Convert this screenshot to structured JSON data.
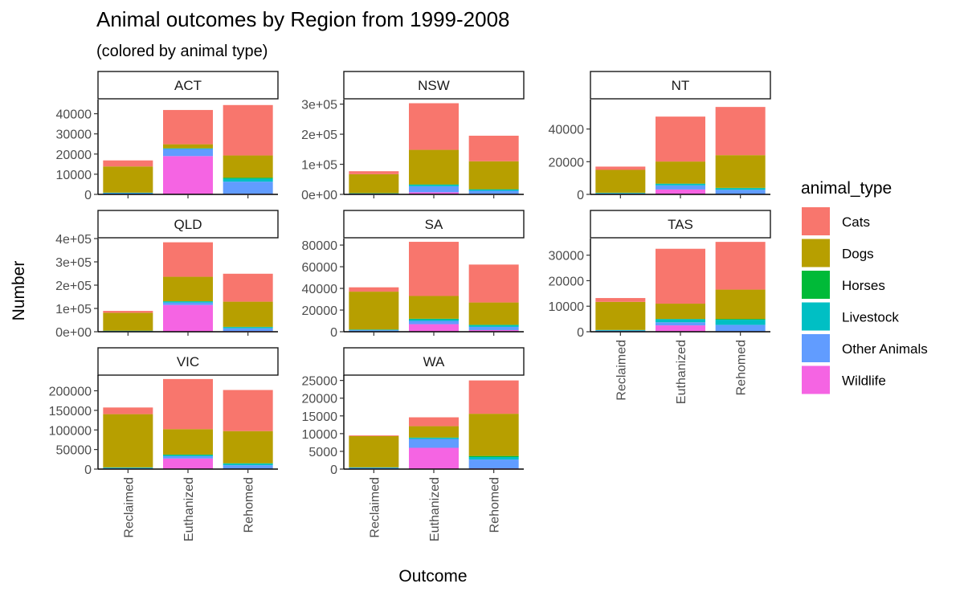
{
  "chart_data": {
    "type": "bar",
    "stacked": true,
    "title": "Animal outcomes by Region from 1999-2008",
    "subtitle": "(colored by animal type)",
    "xlabel": "Outcome",
    "ylabel": "Number",
    "categories": [
      "Reclaimed",
      "Euthanized",
      "Rehomed"
    ],
    "legend": {
      "title": "animal_type",
      "position": "right",
      "items": [
        {
          "name": "Cats",
          "color": "#F8766D"
        },
        {
          "name": "Dogs",
          "color": "#B79F00"
        },
        {
          "name": "Horses",
          "color": "#00BA38"
        },
        {
          "name": "Livestock",
          "color": "#00BFC4"
        },
        {
          "name": "Other Animals",
          "color": "#619CFF"
        },
        {
          "name": "Wildlife",
          "color": "#F564E3"
        }
      ]
    },
    "panels": [
      {
        "region": "ACT",
        "ylim": [
          0,
          47000
        ],
        "ticks": [
          {
            "v": 0,
            "l": "0"
          },
          {
            "v": 10000,
            "l": "10000"
          },
          {
            "v": 20000,
            "l": "20000"
          },
          {
            "v": 30000,
            "l": "30000"
          },
          {
            "v": 40000,
            "l": "40000"
          }
        ],
        "series": {
          "Cats": [
            3000,
            17000,
            25000
          ],
          "Dogs": [
            13000,
            2000,
            11000
          ],
          "Horses": [
            50,
            50,
            500
          ],
          "Livestock": [
            200,
            300,
            1500
          ],
          "Other Animals": [
            500,
            3500,
            6000
          ],
          "Wildlife": [
            100,
            19000,
            300
          ]
        }
      },
      {
        "region": "NSW",
        "ylim": [
          0,
          315000
        ],
        "ticks": [
          {
            "v": 0,
            "l": "0e+00"
          },
          {
            "v": 100000,
            "l": "1e+05"
          },
          {
            "v": 200000,
            "l": "2e+05"
          },
          {
            "v": 300000,
            "l": "3e+05"
          }
        ],
        "series": {
          "Cats": [
            10000,
            155000,
            85000
          ],
          "Dogs": [
            63000,
            115000,
            93000
          ],
          "Horses": [
            500,
            1000,
            1000
          ],
          "Livestock": [
            1000,
            5000,
            4000
          ],
          "Other Animals": [
            2000,
            20000,
            10000
          ],
          "Wildlife": [
            500,
            7000,
            2000
          ]
        }
      },
      {
        "region": "NT",
        "ylim": [
          0,
          58000
        ],
        "ticks": [
          {
            "v": 0,
            "l": "0"
          },
          {
            "v": 20000,
            "l": "20000"
          },
          {
            "v": 40000,
            "l": "40000"
          }
        ],
        "series": {
          "Cats": [
            2000,
            27500,
            29500
          ],
          "Dogs": [
            14000,
            13500,
            20000
          ],
          "Horses": [
            100,
            100,
            200
          ],
          "Livestock": [
            300,
            1000,
            1000
          ],
          "Other Animals": [
            500,
            2500,
            2500
          ],
          "Wildlife": [
            100,
            3000,
            300
          ]
        }
      },
      {
        "region": "QLD",
        "ylim": [
          0,
          400000
        ],
        "ticks": [
          {
            "v": 0,
            "l": "0e+00"
          },
          {
            "v": 100000,
            "l": "1e+05"
          },
          {
            "v": 200000,
            "l": "2e+05"
          },
          {
            "v": 300000,
            "l": "3e+05"
          },
          {
            "v": 400000,
            "l": "4e+05"
          }
        ],
        "series": {
          "Cats": [
            8000,
            148000,
            120000
          ],
          "Dogs": [
            77000,
            105000,
            108000
          ],
          "Horses": [
            500,
            1000,
            1000
          ],
          "Livestock": [
            1500,
            5000,
            5000
          ],
          "Other Animals": [
            2000,
            10000,
            12000
          ],
          "Wildlife": [
            500,
            115000,
            3000
          ]
        }
      },
      {
        "region": "SA",
        "ylim": [
          0,
          86000
        ],
        "ticks": [
          {
            "v": 0,
            "l": "0"
          },
          {
            "v": 20000,
            "l": "20000"
          },
          {
            "v": 40000,
            "l": "40000"
          },
          {
            "v": 60000,
            "l": "60000"
          },
          {
            "v": 80000,
            "l": "80000"
          }
        ],
        "series": {
          "Cats": [
            4000,
            50000,
            35000
          ],
          "Dogs": [
            35000,
            21000,
            20500
          ],
          "Horses": [
            100,
            500,
            500
          ],
          "Livestock": [
            500,
            1500,
            1500
          ],
          "Other Animals": [
            1000,
            3000,
            3000
          ],
          "Wildlife": [
            400,
            7000,
            1500
          ]
        }
      },
      {
        "region": "TAS",
        "ylim": [
          0,
          36500
        ],
        "ticks": [
          {
            "v": 0,
            "l": "0"
          },
          {
            "v": 10000,
            "l": "10000"
          },
          {
            "v": 20000,
            "l": "20000"
          },
          {
            "v": 30000,
            "l": "30000"
          }
        ],
        "series": {
          "Cats": [
            1500,
            21500,
            18700
          ],
          "Dogs": [
            11000,
            6000,
            11500
          ],
          "Horses": [
            50,
            100,
            300
          ],
          "Livestock": [
            200,
            1200,
            2000
          ],
          "Other Animals": [
            400,
            1200,
            2500
          ],
          "Wildlife": [
            50,
            2500,
            200
          ]
        }
      },
      {
        "region": "VIC",
        "ylim": [
          0,
          240000
        ],
        "ticks": [
          {
            "v": 0,
            "l": "0"
          },
          {
            "v": 50000,
            "l": "50000"
          },
          {
            "v": 100000,
            "l": "100000"
          },
          {
            "v": 150000,
            "l": "150000"
          },
          {
            "v": 200000,
            "l": "200000"
          }
        ],
        "series": {
          "Cats": [
            17000,
            128000,
            105000
          ],
          "Dogs": [
            136000,
            65000,
            82000
          ],
          "Horses": [
            300,
            1000,
            1000
          ],
          "Livestock": [
            1500,
            3000,
            4000
          ],
          "Other Animals": [
            2000,
            6000,
            9000
          ],
          "Wildlife": [
            500,
            27000,
            1000
          ]
        }
      },
      {
        "region": "WA",
        "ylim": [
          0,
          26500
        ],
        "ticks": [
          {
            "v": 0,
            "l": "0"
          },
          {
            "v": 5000,
            "l": "5000"
          },
          {
            "v": 10000,
            "l": "10000"
          },
          {
            "v": 15000,
            "l": "15000"
          },
          {
            "v": 20000,
            "l": "20000"
          },
          {
            "v": 25000,
            "l": "25000"
          }
        ],
        "series": {
          "Cats": [
            200,
            2500,
            9400
          ],
          "Dogs": [
            8800,
            3200,
            11900
          ],
          "Horses": [
            50,
            100,
            300
          ],
          "Livestock": [
            100,
            300,
            700
          ],
          "Other Animals": [
            300,
            2500,
            2500
          ],
          "Wildlife": [
            50,
            6000,
            200
          ]
        }
      }
    ]
  }
}
